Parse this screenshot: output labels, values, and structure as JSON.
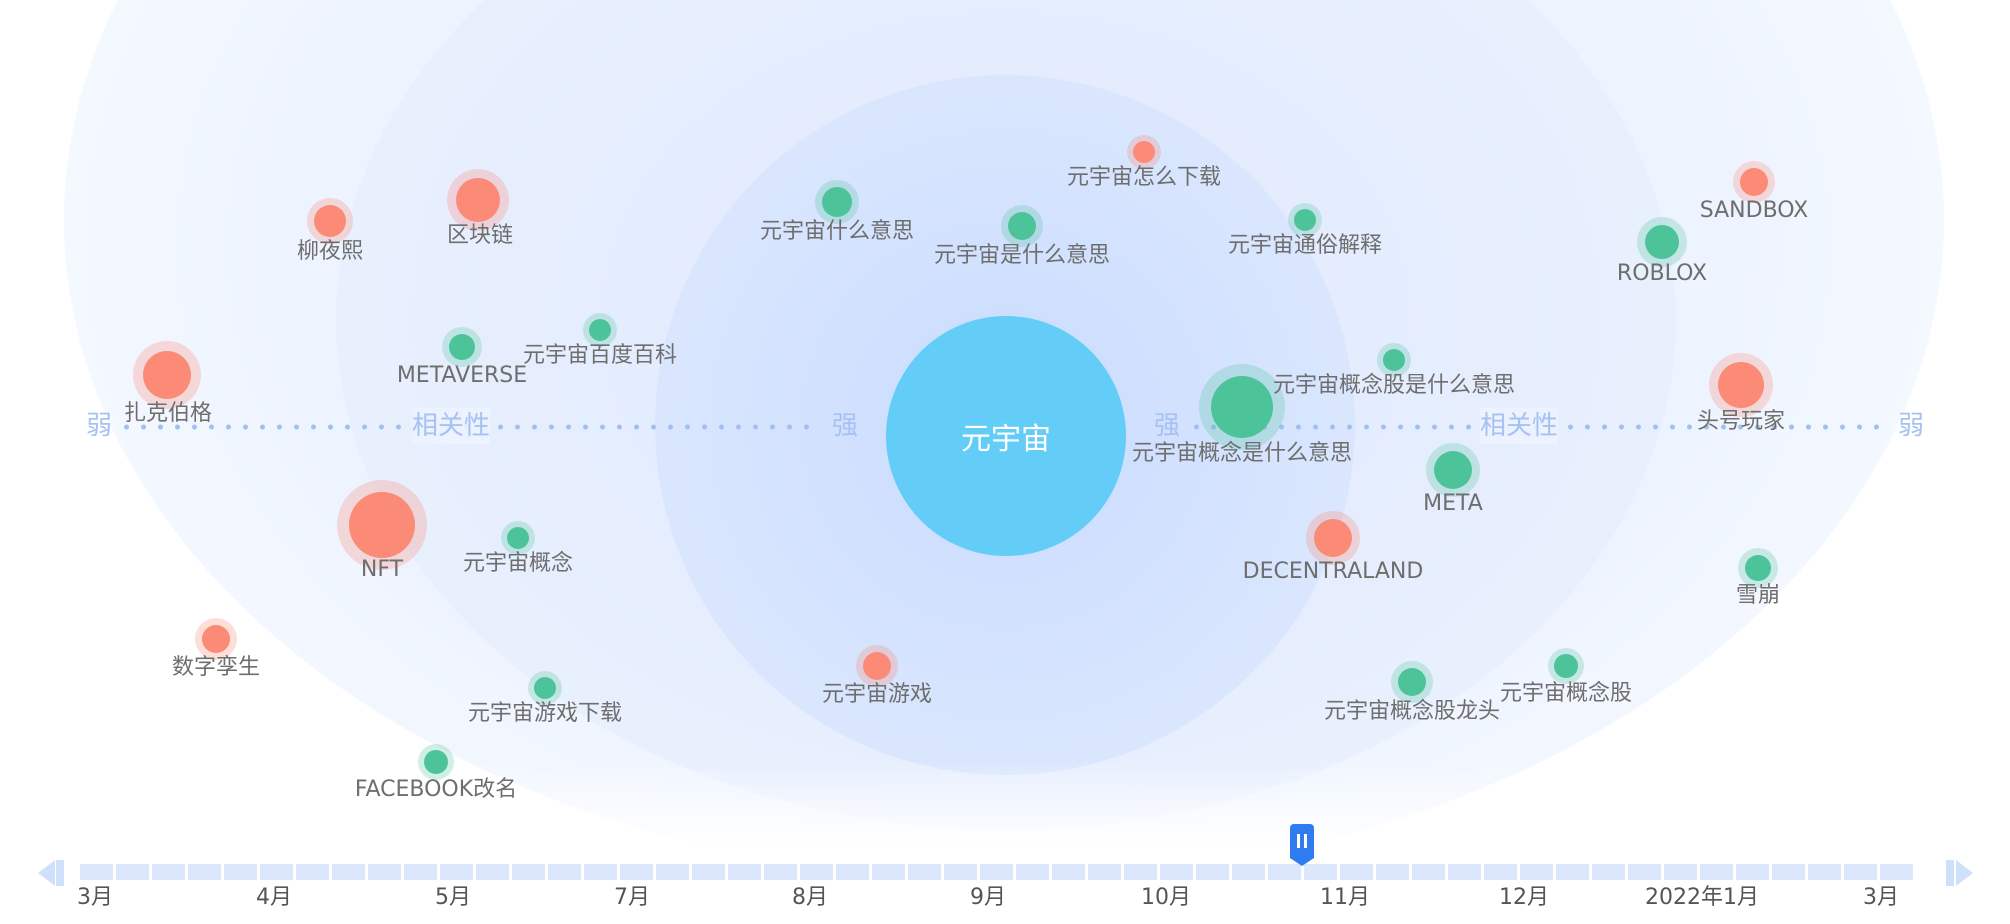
{
  "center": {
    "label": "元宇宙"
  },
  "axis": {
    "left_weak": "弱",
    "left_corr": "相关性",
    "left_strong": "强",
    "right_strong": "强",
    "right_corr": "相关性",
    "right_weak": "弱"
  },
  "colors": {
    "related_positive": "#fb8a76",
    "related_green": "#4dc39a",
    "center": "#63cdf8",
    "handle": "#2f7cf0"
  },
  "bubbles": [
    {
      "id": "liuyexi",
      "label": "柳夜熙",
      "color": "red"
    },
    {
      "id": "qukuailian",
      "label": "区块链",
      "color": "red"
    },
    {
      "id": "zakeboge",
      "label": "扎克伯格",
      "color": "red"
    },
    {
      "id": "metaverse",
      "label": "METAVERSE",
      "color": "green"
    },
    {
      "id": "baidubaike",
      "label": "元宇宙百度百科",
      "color": "green"
    },
    {
      "id": "nft",
      "label": "NFT",
      "color": "red"
    },
    {
      "id": "gainian",
      "label": "元宇宙概念",
      "color": "green"
    },
    {
      "id": "shuziluansheng",
      "label": "数字孪生",
      "color": "red"
    },
    {
      "id": "youxixiazai",
      "label": "元宇宙游戏下载",
      "color": "green"
    },
    {
      "id": "facebook",
      "label": "FACEBOOK改名",
      "color": "green"
    },
    {
      "id": "shenmeyisi",
      "label": "元宇宙什么意思",
      "color": "green"
    },
    {
      "id": "shishenmeyisi",
      "label": "元宇宙是什么意思",
      "color": "green"
    },
    {
      "id": "zenmexiazai",
      "label": "元宇宙怎么下载",
      "color": "red"
    },
    {
      "id": "tongsujieshi",
      "label": "元宇宙通俗解释",
      "color": "green"
    },
    {
      "id": "youxi",
      "label": "元宇宙游戏",
      "color": "red"
    },
    {
      "id": "gainianyisi",
      "label": "元宇宙概念是什么意思",
      "color": "green"
    },
    {
      "id": "gainiangu",
      "label": "元宇宙概念股是什么意思",
      "color": "green"
    },
    {
      "id": "meta",
      "label": "META",
      "color": "green"
    },
    {
      "id": "decentraland",
      "label": "DECENTRALAND",
      "color": "red"
    },
    {
      "id": "longtou",
      "label": "元宇宙概念股龙头",
      "color": "green"
    },
    {
      "id": "gainiangu2",
      "label": "元宇宙概念股",
      "color": "green"
    },
    {
      "id": "roblox",
      "label": "ROBLOX",
      "color": "green"
    },
    {
      "id": "sandbox",
      "label": "SANDBOX",
      "color": "red"
    },
    {
      "id": "touhaowanjia",
      "label": "头号玩家",
      "color": "red"
    },
    {
      "id": "xuebeng",
      "label": "雪崩",
      "color": "green"
    }
  ],
  "timeline": {
    "labels": [
      "3月",
      "4月",
      "5月",
      "7月",
      "8月",
      "9月",
      "10月",
      "11月",
      "12月",
      "2022年1月",
      "3月"
    ],
    "progress": 0.66
  }
}
